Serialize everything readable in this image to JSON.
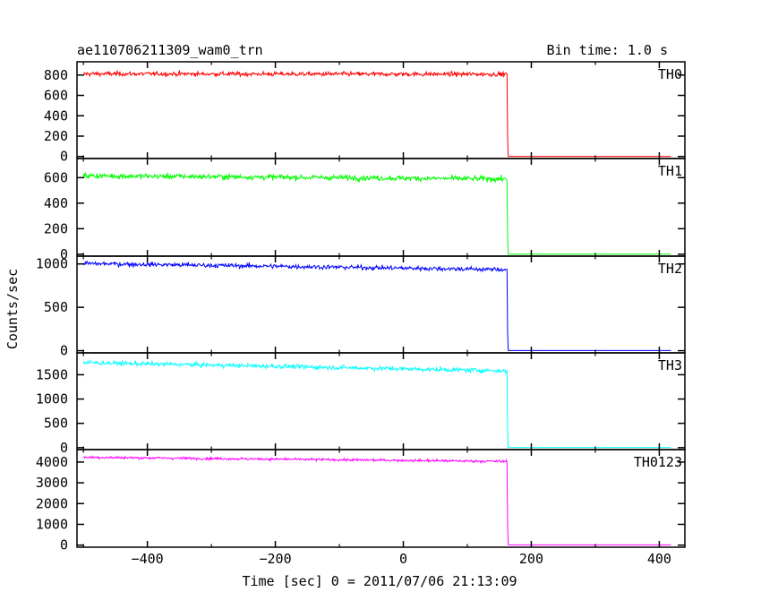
{
  "chart_data": {
    "type": "line",
    "title": "ae110706211309_wam0_trn",
    "subtitle": "Bin time: 1.0 s",
    "xlabel": "Time [sec] 0 = 2011/07/06 21:13:09",
    "ylabel": "Counts/sec",
    "xlim": [
      -510,
      440
    ],
    "xticks": [
      -400,
      -200,
      0,
      200,
      400
    ],
    "x_tick_labels": [
      "−400",
      "−200",
      "0",
      "200",
      "400"
    ],
    "bin_time": 1.0,
    "drop_time": 163,
    "grid": false,
    "legend": "none",
    "panels": [
      {
        "name": "TH0",
        "color": "#ff0000",
        "ylim": [
          -20,
          930
        ],
        "yticks": [
          0,
          200,
          400,
          600,
          800
        ],
        "y_tick_labels": [
          "0",
          "200",
          "400",
          "600",
          "800"
        ],
        "level_start": 812,
        "level_end": 808,
        "noise": 18,
        "tail_level": 1,
        "data_start": -500,
        "data_end": 418
      },
      {
        "name": "TH1",
        "color": "#00ff00",
        "ylim": [
          -15,
          750
        ],
        "yticks": [
          0,
          200,
          400,
          600
        ],
        "y_tick_labels": [
          "0",
          "200",
          "400",
          "600"
        ],
        "level_start": 615,
        "level_end": 590,
        "noise": 18,
        "tail_level": 1,
        "data_start": -500,
        "data_end": 418
      },
      {
        "name": "TH2",
        "color": "#0000ff",
        "ylim": [
          -25,
          1090
        ],
        "yticks": [
          0,
          500,
          1000
        ],
        "y_tick_labels": [
          "0",
          "500",
          "1000"
        ],
        "level_start": 1005,
        "level_end": 935,
        "noise": 22,
        "tail_level": 2,
        "data_start": -500,
        "data_end": 418
      },
      {
        "name": "TH3",
        "color": "#00ffff",
        "ylim": [
          -40,
          1950
        ],
        "yticks": [
          0,
          500,
          1000,
          1500
        ],
        "y_tick_labels": [
          "0",
          "500",
          "1000",
          "1500"
        ],
        "level_start": 1750,
        "level_end": 1580,
        "noise": 38,
        "tail_level": 5,
        "data_start": -500,
        "data_end": 418
      },
      {
        "name": "TH0123",
        "color": "#ff00ff",
        "ylim": [
          -100,
          4600
        ],
        "yticks": [
          0,
          1000,
          2000,
          3000,
          4000
        ],
        "y_tick_labels": [
          "0",
          "1000",
          "2000",
          "3000",
          "4000"
        ],
        "level_start": 4230,
        "level_end": 4030,
        "noise": 50,
        "tail_level": 12,
        "data_start": -500,
        "data_end": 418
      }
    ]
  }
}
